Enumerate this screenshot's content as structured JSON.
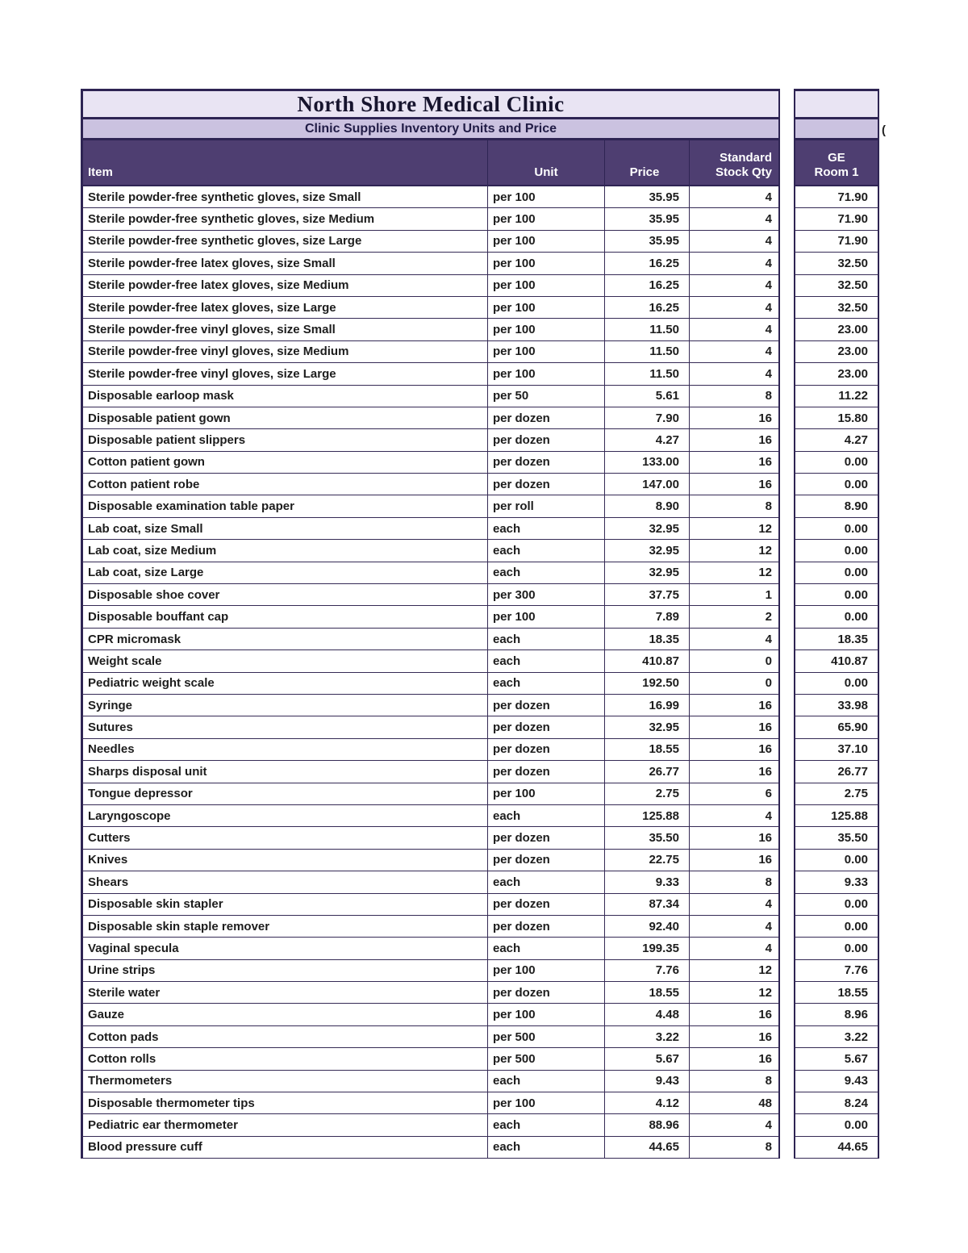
{
  "title": "North Shore Medical Clinic",
  "subtitle": "Clinic Supplies Inventory Units and Price",
  "overflow_partial_text": "(",
  "colors": {
    "title_bg": "#e9e4f3",
    "subtitle_bg": "#cbc2e0",
    "header_bg": "#4e3e71",
    "border": "#2e2453",
    "header_text": "#ffffff"
  },
  "columns": {
    "item": "Item",
    "unit": "Unit",
    "price": "Price",
    "stock": "Standard\nStock Qty",
    "room1": "GE\nRoom 1"
  },
  "rows": [
    {
      "item": "Sterile powder-free synthetic gloves, size Small",
      "unit": "per 100",
      "price": "35.95",
      "stock": "4",
      "room1": "71.90"
    },
    {
      "item": "Sterile powder-free synthetic gloves, size Medium",
      "unit": "per 100",
      "price": "35.95",
      "stock": "4",
      "room1": "71.90"
    },
    {
      "item": "Sterile powder-free synthetic gloves, size Large",
      "unit": "per 100",
      "price": "35.95",
      "stock": "4",
      "room1": "71.90"
    },
    {
      "item": "Sterile powder-free latex gloves, size Small",
      "unit": "per 100",
      "price": "16.25",
      "stock": "4",
      "room1": "32.50"
    },
    {
      "item": "Sterile powder-free latex gloves, size Medium",
      "unit": "per 100",
      "price": "16.25",
      "stock": "4",
      "room1": "32.50"
    },
    {
      "item": "Sterile powder-free latex gloves, size Large",
      "unit": "per 100",
      "price": "16.25",
      "stock": "4",
      "room1": "32.50"
    },
    {
      "item": "Sterile powder-free vinyl gloves, size Small",
      "unit": "per 100",
      "price": "11.50",
      "stock": "4",
      "room1": "23.00"
    },
    {
      "item": "Sterile powder-free vinyl gloves, size Medium",
      "unit": "per 100",
      "price": "11.50",
      "stock": "4",
      "room1": "23.00"
    },
    {
      "item": "Sterile powder-free vinyl gloves, size Large",
      "unit": "per 100",
      "price": "11.50",
      "stock": "4",
      "room1": "23.00"
    },
    {
      "item": "Disposable earloop mask",
      "unit": "per 50",
      "price": "5.61",
      "stock": "8",
      "room1": "11.22"
    },
    {
      "item": "Disposable patient gown",
      "unit": "per dozen",
      "price": "7.90",
      "stock": "16",
      "room1": "15.80"
    },
    {
      "item": "Disposable patient slippers",
      "unit": "per dozen",
      "price": "4.27",
      "stock": "16",
      "room1": "4.27"
    },
    {
      "item": "Cotton patient gown",
      "unit": "per dozen",
      "price": "133.00",
      "stock": "16",
      "room1": "0.00"
    },
    {
      "item": "Cotton patient robe",
      "unit": "per dozen",
      "price": "147.00",
      "stock": "16",
      "room1": "0.00"
    },
    {
      "item": "Disposable examination table paper",
      "unit": "per roll",
      "price": "8.90",
      "stock": "8",
      "room1": "8.90"
    },
    {
      "item": "Lab coat, size Small",
      "unit": "each",
      "price": "32.95",
      "stock": "12",
      "room1": "0.00"
    },
    {
      "item": "Lab coat, size Medium",
      "unit": "each",
      "price": "32.95",
      "stock": "12",
      "room1": "0.00"
    },
    {
      "item": "Lab coat, size Large",
      "unit": "each",
      "price": "32.95",
      "stock": "12",
      "room1": "0.00"
    },
    {
      "item": "Disposable shoe cover",
      "unit": "per 300",
      "price": "37.75",
      "stock": "1",
      "room1": "0.00"
    },
    {
      "item": "Disposable bouffant cap",
      "unit": "per 100",
      "price": "7.89",
      "stock": "2",
      "room1": "0.00"
    },
    {
      "item": "CPR micromask",
      "unit": "each",
      "price": "18.35",
      "stock": "4",
      "room1": "18.35"
    },
    {
      "item": "Weight scale",
      "unit": "each",
      "price": "410.87",
      "stock": "0",
      "room1": "410.87"
    },
    {
      "item": "Pediatric weight scale",
      "unit": "each",
      "price": "192.50",
      "stock": "0",
      "room1": "0.00"
    },
    {
      "item": "Syringe",
      "unit": "per dozen",
      "price": "16.99",
      "stock": "16",
      "room1": "33.98"
    },
    {
      "item": "Sutures",
      "unit": "per dozen",
      "price": "32.95",
      "stock": "16",
      "room1": "65.90"
    },
    {
      "item": "Needles",
      "unit": "per dozen",
      "price": "18.55",
      "stock": "16",
      "room1": "37.10"
    },
    {
      "item": "Sharps disposal unit",
      "unit": "per dozen",
      "price": "26.77",
      "stock": "16",
      "room1": "26.77"
    },
    {
      "item": "Tongue depressor",
      "unit": "per 100",
      "price": "2.75",
      "stock": "6",
      "room1": "2.75"
    },
    {
      "item": "Laryngoscope",
      "unit": "each",
      "price": "125.88",
      "stock": "4",
      "room1": "125.88"
    },
    {
      "item": "Cutters",
      "unit": "per dozen",
      "price": "35.50",
      "stock": "16",
      "room1": "35.50"
    },
    {
      "item": "Knives",
      "unit": "per dozen",
      "price": "22.75",
      "stock": "16",
      "room1": "0.00"
    },
    {
      "item": "Shears",
      "unit": "each",
      "price": "9.33",
      "stock": "8",
      "room1": "9.33"
    },
    {
      "item": "Disposable skin stapler",
      "unit": "per dozen",
      "price": "87.34",
      "stock": "4",
      "room1": "0.00"
    },
    {
      "item": "Disposable skin staple remover",
      "unit": "per dozen",
      "price": "92.40",
      "stock": "4",
      "room1": "0.00"
    },
    {
      "item": "Vaginal specula",
      "unit": "each",
      "price": "199.35",
      "stock": "4",
      "room1": "0.00"
    },
    {
      "item": "Urine strips",
      "unit": "per 100",
      "price": "7.76",
      "stock": "12",
      "room1": "7.76"
    },
    {
      "item": "Sterile water",
      "unit": "per dozen",
      "price": "18.55",
      "stock": "12",
      "room1": "18.55"
    },
    {
      "item": "Gauze",
      "unit": "per 100",
      "price": "4.48",
      "stock": "16",
      "room1": "8.96"
    },
    {
      "item": "Cotton pads",
      "unit": "per 500",
      "price": "3.22",
      "stock": "16",
      "room1": "3.22"
    },
    {
      "item": "Cotton rolls",
      "unit": "per 500",
      "price": "5.67",
      "stock": "16",
      "room1": "5.67"
    },
    {
      "item": "Thermometers",
      "unit": "each",
      "price": "9.43",
      "stock": "8",
      "room1": "9.43"
    },
    {
      "item": "Disposable thermometer tips",
      "unit": "per 100",
      "price": "4.12",
      "stock": "48",
      "room1": "8.24"
    },
    {
      "item": "Pediatric ear thermometer",
      "unit": "each",
      "price": "88.96",
      "stock": "4",
      "room1": "0.00"
    },
    {
      "item": "Blood pressure cuff",
      "unit": "each",
      "price": "44.65",
      "stock": "8",
      "room1": "44.65"
    }
  ]
}
